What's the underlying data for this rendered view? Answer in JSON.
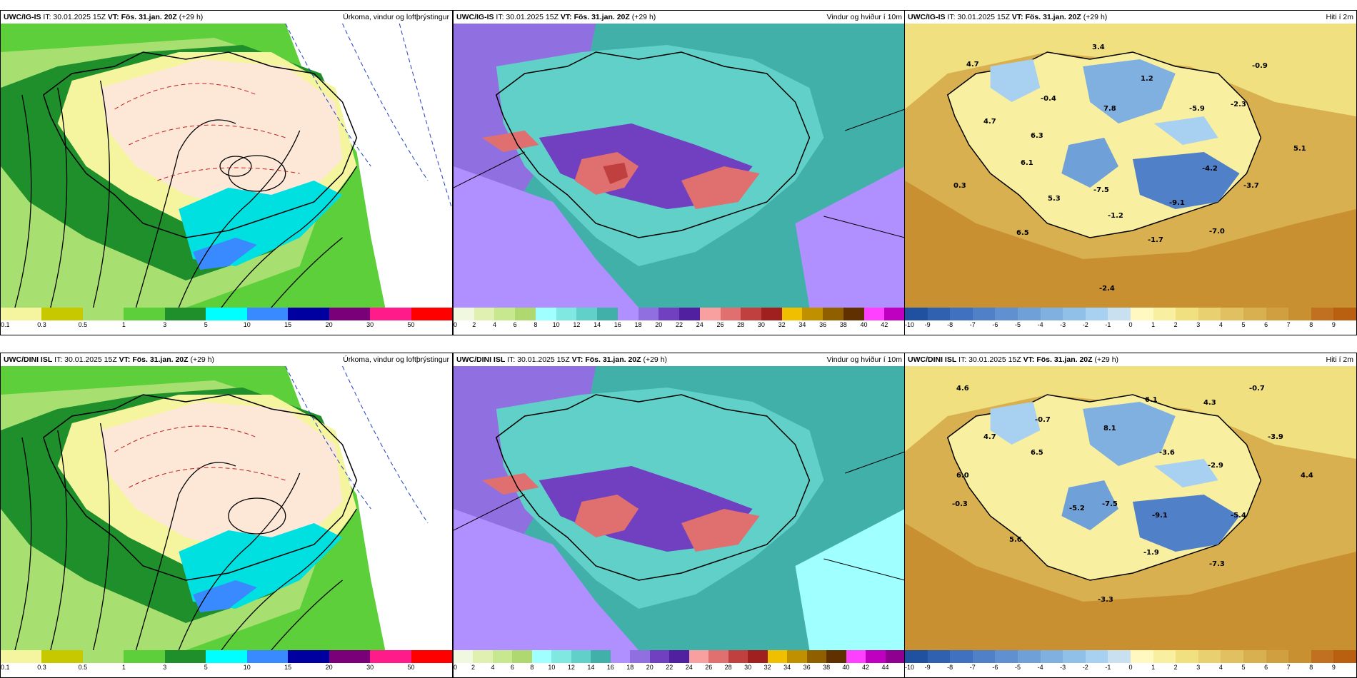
{
  "top": {
    "rain": {
      "model": "UWC/IG-IS",
      "it": "IT: 30.01.2025 15Z",
      "vt": "VT: Fös. 31.jan. 20Z",
      "lead": "(+29 h)",
      "title": "Úrkoma, vindur og loftþrýstingur",
      "ticks": [
        "0.1",
        "0.3",
        "0.5",
        "1",
        "3",
        "5",
        "10",
        "15",
        "20",
        "30",
        "50"
      ],
      "colors": [
        "#f5f5a0",
        "#c8c800",
        "#a7e070",
        "#5dcf3a",
        "#1e8f2a",
        "#00ffff",
        "#3a8aff",
        "#0000a0",
        "#7a007a",
        "#ff1c8a",
        "#ff0000"
      ]
    },
    "wind": {
      "model": "UWC/IG-IS",
      "it": "IT: 30.01.2025 15Z",
      "vt": "VT: Fös. 31.jan. 20Z",
      "lead": "(+29 h)",
      "title": "Vindur og hviður í 10m",
      "ticks": [
        "0",
        "2",
        "4",
        "6",
        "8",
        "10",
        "12",
        "14",
        "16",
        "18",
        "20",
        "22",
        "24",
        "26",
        "28",
        "30",
        "32",
        "34",
        "36",
        "38",
        "40",
        "42"
      ],
      "colors": [
        "#f0f8e0",
        "#e0f0b0",
        "#c8e890",
        "#b0d870",
        "#a0ffff",
        "#80e8e0",
        "#60d0c8",
        "#40b0a8",
        "#b090ff",
        "#9070e0",
        "#7040c0",
        "#5020a0",
        "#f8a0a0",
        "#e07070",
        "#c04040",
        "#a02020",
        "#f0c000",
        "#c09000",
        "#906000",
        "#603000",
        "#ff40ff",
        "#c000c0"
      ]
    },
    "temp": {
      "model": "UWC/IG-IS",
      "it": "IT: 30.01.2025 15Z",
      "vt": "VT: Fös. 31.jan. 20Z",
      "lead": "(+29 h)",
      "title": "Hiti í 2m",
      "ticks": [
        "-10",
        "-9",
        "-8",
        "-7",
        "-6",
        "-5",
        "-4",
        "-3",
        "-2",
        "-1",
        "0",
        "1",
        "2",
        "3",
        "4",
        "5",
        "6",
        "7",
        "8",
        "9"
      ],
      "colors": [
        "#2050a0",
        "#3060b0",
        "#4070c0",
        "#5080c8",
        "#6090d0",
        "#70a0d8",
        "#80b0e0",
        "#90c0e8",
        "#a8d0f0",
        "#c8e0f0",
        "#fff8c0",
        "#f8f0a0",
        "#f0e080",
        "#e8d070",
        "#e0c060",
        "#d8b050",
        "#d0a040",
        "#c89030",
        "#c07020",
        "#b86010"
      ],
      "values": [
        "3.4",
        "4.7",
        "-0.9",
        "1.2",
        "-0.4",
        "7.8",
        "-5.9",
        "-2.3",
        "4.7",
        "6.3",
        "5.1",
        "6.1",
        "-4.2",
        "0.3",
        "-7.5",
        "-3.7",
        "5.3",
        "-9.1",
        "-1.2",
        "6.5",
        "-7.0",
        "-1.7",
        "-2.4"
      ]
    }
  },
  "bottom": {
    "rain": {
      "model": "UWC/DINI ISL",
      "it": "IT: 30.01.2025 15Z",
      "vt": "VT: Fös. 31.jan. 20Z",
      "lead": "(+29 h)",
      "title": "Úrkoma, vindur og loftþrýstingur",
      "ticks": [
        "0.1",
        "0.3",
        "0.5",
        "1",
        "3",
        "5",
        "10",
        "15",
        "20",
        "30",
        "50"
      ],
      "colors": [
        "#f5f5a0",
        "#c8c800",
        "#a7e070",
        "#5dcf3a",
        "#1e8f2a",
        "#00ffff",
        "#3a8aff",
        "#0000a0",
        "#7a007a",
        "#ff1c8a",
        "#ff0000"
      ]
    },
    "wind": {
      "model": "UWC/DINI ISL",
      "it": "IT: 30.01.2025 15Z",
      "vt": "VT: Fös. 31.jan. 20Z",
      "lead": "(+29 h)",
      "title": "Vindur og hviður í 10m",
      "ticks": [
        "0",
        "2",
        "4",
        "6",
        "8",
        "10",
        "12",
        "14",
        "16",
        "18",
        "20",
        "22",
        "24",
        "26",
        "28",
        "30",
        "32",
        "34",
        "36",
        "38",
        "40",
        "42",
        "44"
      ],
      "colors": [
        "#f0f8e0",
        "#e0f0b0",
        "#c8e890",
        "#b0d870",
        "#a0ffff",
        "#80e8e0",
        "#60d0c8",
        "#40b0a8",
        "#b090ff",
        "#9070e0",
        "#7040c0",
        "#5020a0",
        "#f8a0a0",
        "#e07070",
        "#c04040",
        "#a02020",
        "#f0c000",
        "#c09000",
        "#906000",
        "#603000",
        "#ff40ff",
        "#c000c0",
        "#900090"
      ]
    },
    "temp": {
      "model": "UWC/DINI ISL",
      "it": "IT: 30.01.2025 15Z",
      "vt": "VT: Fös. 31.jan. 20Z",
      "lead": "(+29 h)",
      "title": "Hiti í 2m",
      "ticks": [
        "-10",
        "-9",
        "-8",
        "-7",
        "-6",
        "-5",
        "-4",
        "-3",
        "-2",
        "-1",
        "0",
        "1",
        "2",
        "3",
        "4",
        "5",
        "6",
        "7",
        "8",
        "9"
      ],
      "colors": [
        "#2050a0",
        "#3060b0",
        "#4070c0",
        "#5080c8",
        "#6090d0",
        "#70a0d8",
        "#80b0e0",
        "#90c0e8",
        "#a8d0f0",
        "#c8e0f0",
        "#fff8c0",
        "#f8f0a0",
        "#f0e080",
        "#e8d070",
        "#e0c060",
        "#d8b050",
        "#d0a040",
        "#c89030",
        "#c07020",
        "#b86010"
      ],
      "values": [
        "4.6",
        "-0.7",
        "6.1",
        "4.3",
        "-0.7",
        "8.1",
        "-3.9",
        "4.7",
        "6.5",
        "-3.6",
        "6.0",
        "-2.9",
        "4.4",
        "-0.3",
        "-5.2",
        "-7.5",
        "-9.1",
        "-5.4",
        "5.6",
        "-1.9",
        "-7.3",
        "-3.3"
      ]
    }
  }
}
